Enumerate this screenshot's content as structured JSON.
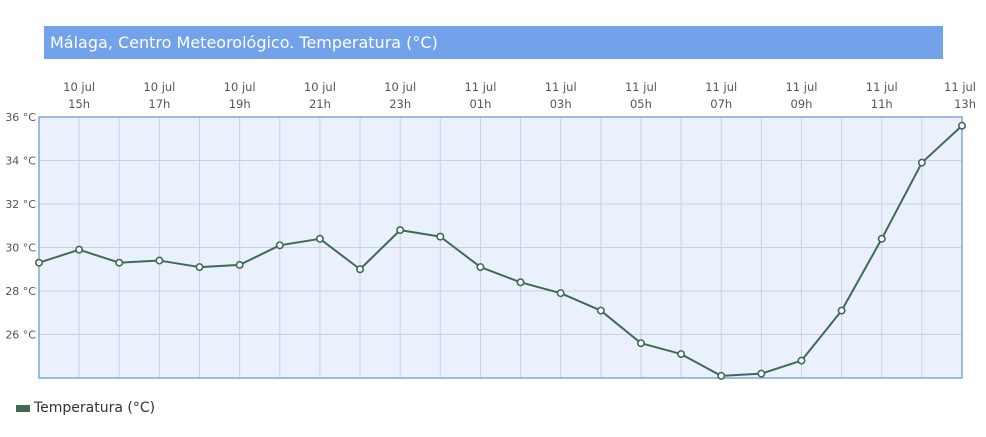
{
  "colors": {
    "title_bg": "#72a2e9",
    "plot_bg": "#eaf1fd",
    "plot_border": "#7fa6db",
    "grid": "#c9d2df",
    "line": "#406a55",
    "marker_fill": "#ffffff"
  },
  "chart_data": {
    "type": "line",
    "title": "Málaga, Centro Meteorológico. Temperatura (°C)",
    "x_ticks": [
      {
        "x": 1,
        "date": "10 jul",
        "hour": "15h"
      },
      {
        "x": 3,
        "date": "10 jul",
        "hour": "17h"
      },
      {
        "x": 5,
        "date": "10 jul",
        "hour": "19h"
      },
      {
        "x": 7,
        "date": "10 jul",
        "hour": "21h"
      },
      {
        "x": 9,
        "date": "10 jul",
        "hour": "23h"
      },
      {
        "x": 11,
        "date": "11 jul",
        "hour": "01h"
      },
      {
        "x": 13,
        "date": "11 jul",
        "hour": "03h"
      },
      {
        "x": 15,
        "date": "11 jul",
        "hour": "05h"
      },
      {
        "x": 17,
        "date": "11 jul",
        "hour": "07h"
      },
      {
        "x": 19,
        "date": "11 jul",
        "hour": "09h"
      },
      {
        "x": 21,
        "date": "11 jul",
        "hour": "11h"
      },
      {
        "x": 23,
        "date": "11 jul",
        "hour": "13h"
      }
    ],
    "y_ticks": [
      26,
      28,
      30,
      32,
      34,
      36
    ],
    "y_unit": " °C",
    "ylim": [
      24,
      36
    ],
    "grid": true,
    "legend": {
      "position": "bottom-left",
      "label": "Temperatura (°C)"
    },
    "series": [
      {
        "name": "Temperatura (°C)",
        "values": [
          29.3,
          29.9,
          29.3,
          29.4,
          29.1,
          29.2,
          30.1,
          30.4,
          29.0,
          30.8,
          30.5,
          29.1,
          28.4,
          27.9,
          27.1,
          25.6,
          25.1,
          24.1,
          24.2,
          24.8,
          27.1,
          30.4,
          33.9,
          35.6
        ]
      }
    ]
  }
}
